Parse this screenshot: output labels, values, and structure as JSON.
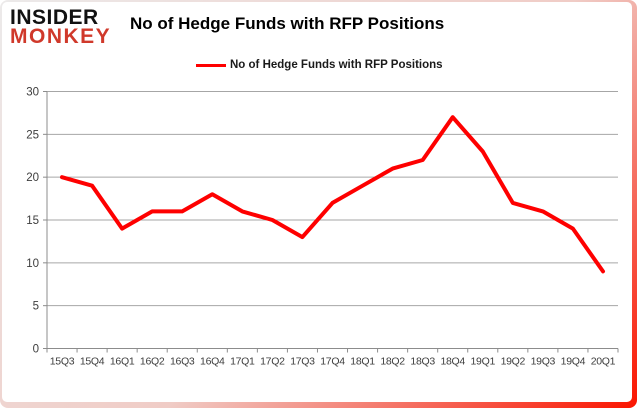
{
  "logo": {
    "line1": "INSIDER",
    "line2": "MONKEY"
  },
  "header": {
    "title": "No of Hedge Funds with RFP Positions"
  },
  "legend": {
    "label": "No of Hedge Funds with RFP Positions",
    "swatch_color": "#fe0000"
  },
  "chart_data": {
    "type": "line",
    "title": "No of Hedge Funds with RFP Positions",
    "series_name": "No of Hedge Funds with RFP Positions",
    "categories": [
      "15Q3",
      "15Q4",
      "16Q1",
      "16Q2",
      "16Q3",
      "16Q4",
      "17Q1",
      "17Q2",
      "17Q3",
      "17Q4",
      "18Q1",
      "18Q2",
      "18Q3",
      "18Q4",
      "19Q1",
      "19Q2",
      "19Q3",
      "19Q4",
      "20Q1"
    ],
    "values": [
      20,
      19,
      14,
      16,
      16,
      18,
      16,
      15,
      13,
      17,
      19,
      21,
      22,
      27,
      23,
      17,
      16,
      14,
      9
    ],
    "ylim": [
      0,
      30
    ],
    "yticks": [
      0,
      5,
      10,
      15,
      20,
      25,
      30
    ],
    "grid": true,
    "legend_position": "top",
    "line_color": "#fe0000",
    "grid_color": "#a6a6a6",
    "axis_color": "#8c8c8c"
  }
}
